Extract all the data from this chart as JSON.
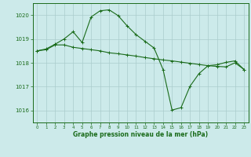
{
  "title": "Graphe pression niveau de la mer (hPa)",
  "background_color": "#cceaea",
  "grid_color": "#aacccc",
  "line_color": "#1a6b1a",
  "xlim": [
    -0.5,
    23.5
  ],
  "ylim": [
    1015.5,
    1020.5
  ],
  "yticks": [
    1016,
    1017,
    1018,
    1019,
    1020
  ],
  "xticks": [
    0,
    1,
    2,
    3,
    4,
    5,
    6,
    7,
    8,
    9,
    10,
    11,
    12,
    13,
    14,
    15,
    16,
    17,
    18,
    19,
    20,
    21,
    22,
    23
  ],
  "line1_x": [
    0,
    1,
    2,
    3,
    4,
    5,
    6,
    7,
    8,
    9,
    10,
    11,
    12,
    13,
    14,
    15,
    16,
    17,
    18,
    19,
    20,
    21,
    22,
    23
  ],
  "line1_y": [
    1018.5,
    1018.55,
    1018.75,
    1018.75,
    1018.65,
    1018.6,
    1018.55,
    1018.5,
    1018.42,
    1018.38,
    1018.33,
    1018.28,
    1018.22,
    1018.17,
    1018.12,
    1018.08,
    1018.03,
    1017.98,
    1017.93,
    1017.88,
    1017.85,
    1017.83,
    1018.0,
    1017.72
  ],
  "line2_x": [
    0,
    1,
    2,
    3,
    4,
    5,
    6,
    7,
    8,
    9,
    10,
    11,
    12,
    13,
    14,
    15,
    16,
    17,
    18,
    19,
    20,
    21,
    22,
    23
  ],
  "line2_y": [
    1018.5,
    1018.58,
    1018.78,
    1019.0,
    1019.3,
    1018.85,
    1019.92,
    1020.18,
    1020.22,
    1019.98,
    1019.55,
    1019.18,
    1018.9,
    1018.62,
    1017.72,
    1016.02,
    1016.12,
    1017.02,
    1017.55,
    1017.88,
    1017.92,
    1018.02,
    1018.08,
    1017.72
  ]
}
